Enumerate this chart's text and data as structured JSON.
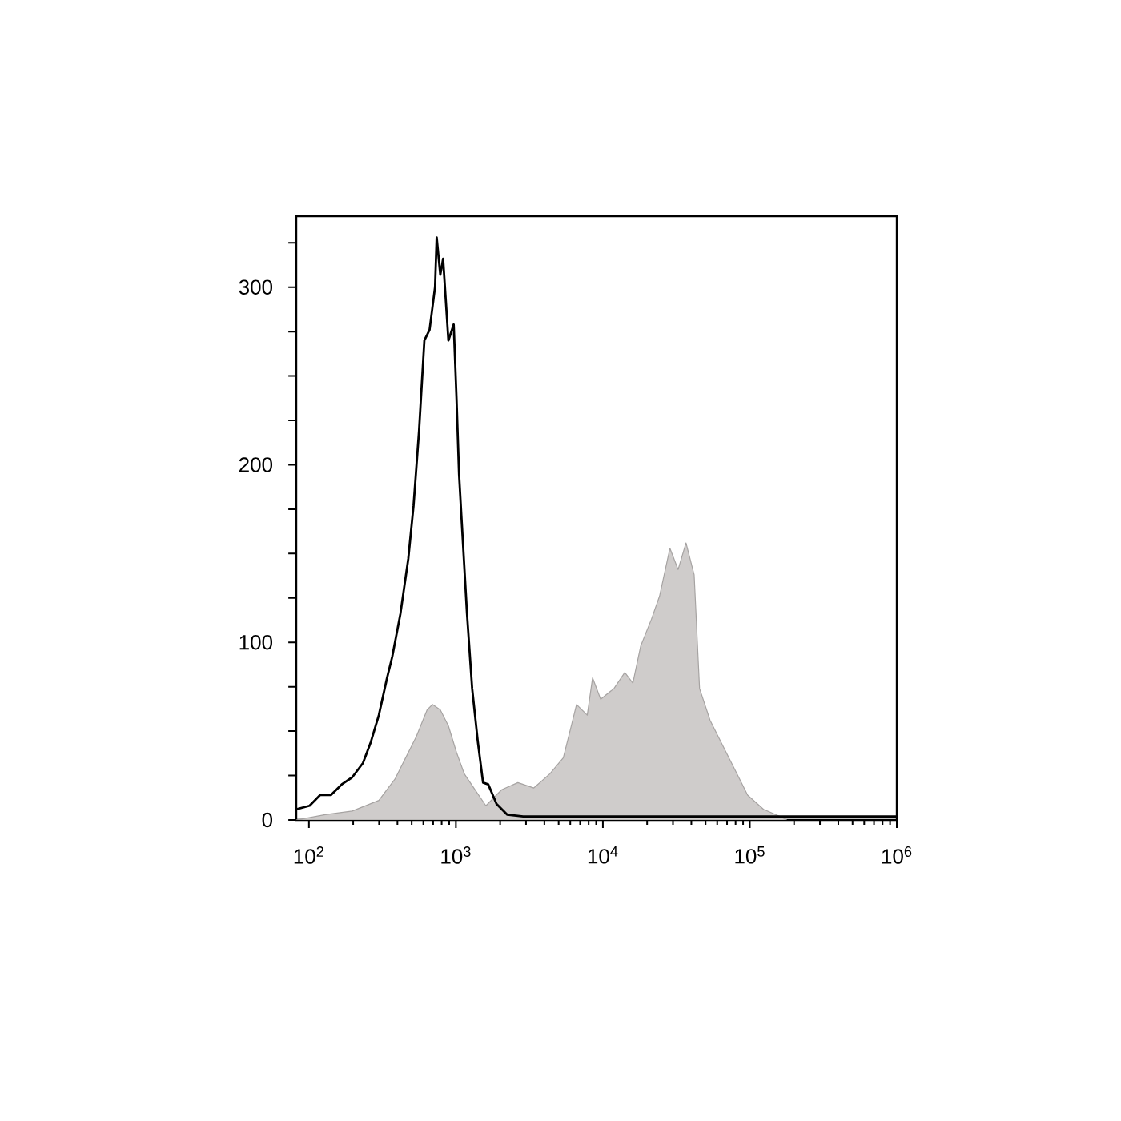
{
  "chart_data": {
    "type": "line",
    "log": "x",
    "grid": false,
    "marker": "none",
    "xlim": [
      82,
      1000000
    ],
    "ylim": [
      0,
      340
    ],
    "xticks": [
      {
        "value": 100,
        "label": "10$^{2}$"
      },
      {
        "value": 1000,
        "label": "10$^{3}$"
      },
      {
        "value": 10000,
        "label": "10$^{4}$"
      },
      {
        "value": 100000,
        "label": "10$^{5}$"
      },
      {
        "value": 1000000,
        "label": "10$^{6}$"
      }
    ],
    "yticks": [
      0,
      {
        "value": 25,
        "label": null
      },
      {
        "value": 50,
        "label": null
      },
      {
        "value": 75,
        "label": null
      },
      100,
      {
        "value": 125,
        "label": null
      },
      {
        "value": 150,
        "label": null
      },
      {
        "value": 175,
        "label": null
      },
      200,
      {
        "value": 225,
        "label": null
      },
      {
        "value": 250,
        "label": null
      },
      {
        "value": 275,
        "label": null
      },
      300,
      {
        "value": 325,
        "label": null
      }
    ],
    "series": [
      {
        "type": "area",
        "color": "#cfcccb",
        "x": [
          82,
          129,
          197,
          299,
          385,
          455,
          538,
          637,
          692,
          783,
          889,
          1010,
          1140,
          1350,
          1600,
          2050,
          2640,
          3390,
          4360,
          5380,
          6100,
          6620,
          7830,
          8510,
          9660,
          11900,
          14100,
          16000,
          18100,
          21400,
          24300,
          28600,
          32500,
          36800,
          41800,
          45500,
          53700,
          66200,
          81700,
          96600,
          124000,
          160000,
          178000
        ],
        "values": [
          0,
          3,
          5,
          11,
          23,
          35,
          47,
          62,
          65,
          62,
          53,
          38,
          26,
          17,
          8,
          17,
          21,
          18,
          26,
          35,
          53,
          65,
          59,
          80,
          68,
          74,
          83,
          77,
          98,
          113,
          126,
          153,
          141,
          156,
          138,
          74,
          56,
          41,
          26,
          14,
          6,
          2,
          0
        ]
      },
      {
        "color": "#000000",
        "x": [
          82,
          101,
          119,
          141,
          167,
          197,
          233,
          264,
          299,
          340,
          369,
          419,
          474,
          515,
          561,
          610,
          662,
          721,
          740,
          783,
          818,
          889,
          966,
          1010,
          1050,
          1090,
          1190,
          1290,
          1410,
          1530,
          1660,
          1890,
          2230,
          2870,
          1000000
        ],
        "values": [
          6,
          8,
          14,
          14,
          20,
          24,
          32,
          44,
          59,
          80,
          92,
          116,
          147,
          177,
          219,
          270,
          276,
          300,
          328,
          307,
          316,
          270,
          279,
          237,
          195,
          171,
          116,
          74,
          44,
          21,
          20,
          9,
          3,
          2,
          2
        ]
      }
    ]
  }
}
